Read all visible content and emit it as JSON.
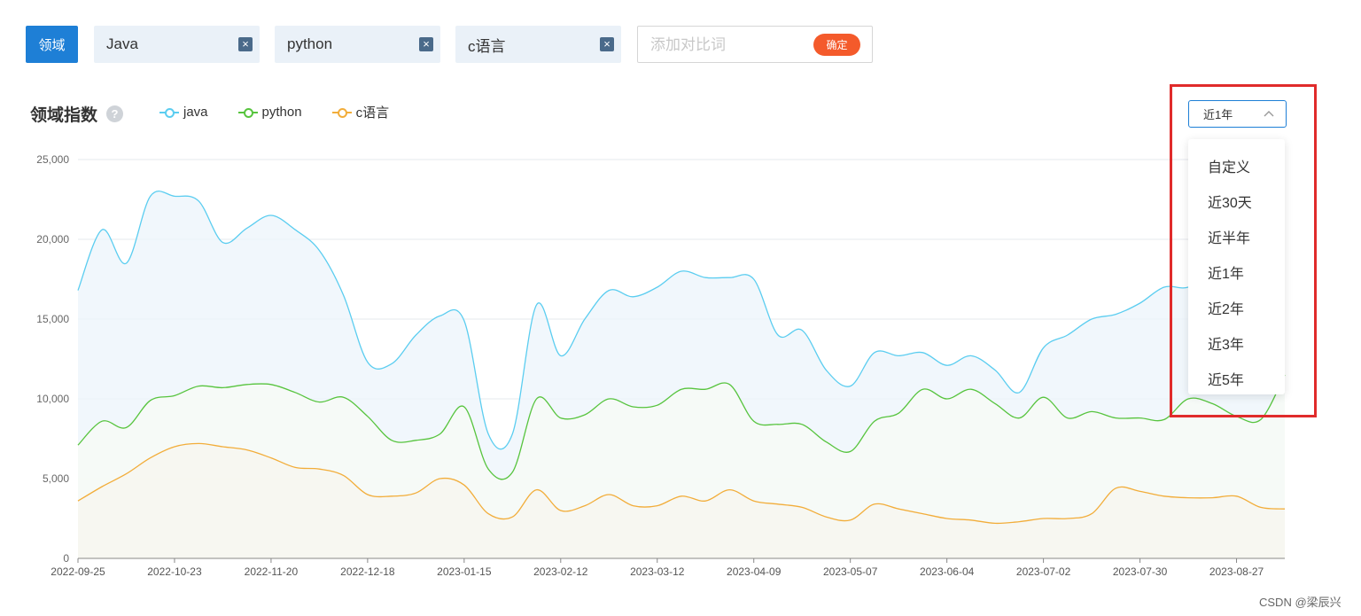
{
  "toolbar": {
    "domain_label": "领域",
    "tags": [
      {
        "label": "Java"
      },
      {
        "label": "python"
      },
      {
        "label": "c语言"
      }
    ],
    "remove_glyph": "×",
    "add_placeholder": "添加对比词",
    "confirm_label": "确定"
  },
  "chart_header": {
    "title": "领域指数",
    "help_glyph": "?"
  },
  "range_select": {
    "selected": "近1年",
    "options": [
      "自定义",
      "近30天",
      "近半年",
      "近1年",
      "近2年",
      "近3年",
      "近5年"
    ]
  },
  "colors": {
    "accent": "#1e7fd6",
    "confirm": "#f45a2b",
    "highlight": "#e02b2b",
    "java": "#5bcdf0",
    "python": "#57c43e",
    "c": "#f2ad3a"
  },
  "chart_data": {
    "type": "area",
    "title": "",
    "xlabel": "",
    "ylabel": "",
    "ylim": [
      0,
      25000
    ],
    "yticks": [
      "0",
      "5,000",
      "10,000",
      "15,000",
      "20,000",
      "25,000"
    ],
    "xtick_labels": [
      "2022-09-25",
      "2022-10-23",
      "2022-11-20",
      "2022-12-18",
      "2023-01-15",
      "2023-02-12",
      "2023-03-12",
      "2023-04-09",
      "2023-05-07",
      "2023-06-04",
      "2023-07-02",
      "2023-07-30",
      "2023-08-27"
    ],
    "x": [
      "2022-09-25",
      "2022-10-02",
      "2022-10-09",
      "2022-10-16",
      "2022-10-23",
      "2022-10-30",
      "2022-11-06",
      "2022-11-13",
      "2022-11-20",
      "2022-11-27",
      "2022-12-04",
      "2022-12-11",
      "2022-12-18",
      "2022-12-25",
      "2023-01-01",
      "2023-01-08",
      "2023-01-15",
      "2023-01-22",
      "2023-01-29",
      "2023-02-05",
      "2023-02-12",
      "2023-02-19",
      "2023-02-26",
      "2023-03-05",
      "2023-03-12",
      "2023-03-19",
      "2023-03-26",
      "2023-04-02",
      "2023-04-09",
      "2023-04-16",
      "2023-04-23",
      "2023-04-30",
      "2023-05-07",
      "2023-05-14",
      "2023-05-21",
      "2023-05-28",
      "2023-06-04",
      "2023-06-11",
      "2023-06-18",
      "2023-06-25",
      "2023-07-02",
      "2023-07-09",
      "2023-07-16",
      "2023-07-23",
      "2023-07-30",
      "2023-08-06",
      "2023-08-13",
      "2023-08-20",
      "2023-08-27",
      "2023-09-03",
      "2023-09-10"
    ],
    "series": [
      {
        "name": "java",
        "color": "#5bcdf0",
        "values": [
          16800,
          20600,
          18500,
          22700,
          22700,
          22400,
          19800,
          20700,
          21500,
          20600,
          19300,
          16500,
          12300,
          12200,
          14000,
          15200,
          14900,
          7800,
          7800,
          15900,
          12700,
          15000,
          16800,
          16400,
          17000,
          18000,
          17600,
          17600,
          17500,
          14000,
          14300,
          11800,
          10800,
          12900,
          12700,
          12900,
          12100,
          12700,
          11800,
          10400,
          13200,
          14000,
          15000,
          15300,
          16000,
          17000,
          17000,
          18000,
          18000,
          18000,
          18000
        ]
      },
      {
        "name": "python",
        "color": "#57c43e",
        "values": [
          7100,
          8600,
          8200,
          9900,
          10200,
          10800,
          10700,
          10900,
          10900,
          10400,
          9800,
          10100,
          8900,
          7400,
          7400,
          7800,
          9500,
          5600,
          5400,
          10000,
          8800,
          9000,
          10000,
          9500,
          9600,
          10600,
          10600,
          10900,
          8600,
          8400,
          8400,
          7300,
          6700,
          8600,
          9100,
          10600,
          10000,
          10600,
          9700,
          8800,
          10100,
          8800,
          9200,
          8800,
          8800,
          8700,
          10000,
          9700,
          8900,
          8700,
          11500
        ]
      },
      {
        "name": "c语言",
        "color": "#f2ad3a",
        "values": [
          3600,
          4500,
          5300,
          6300,
          7000,
          7200,
          7000,
          6800,
          6300,
          5700,
          5600,
          5200,
          4000,
          3900,
          4100,
          5000,
          4600,
          2800,
          2600,
          4300,
          3000,
          3300,
          4000,
          3300,
          3300,
          3900,
          3600,
          4300,
          3600,
          3400,
          3200,
          2600,
          2400,
          3400,
          3100,
          2800,
          2500,
          2400,
          2200,
          2300,
          2500,
          2500,
          2800,
          4400,
          4200,
          3900,
          3800,
          3800,
          3900,
          3200,
          3100
        ]
      }
    ]
  },
  "watermark": "CSDN @梁辰兴"
}
